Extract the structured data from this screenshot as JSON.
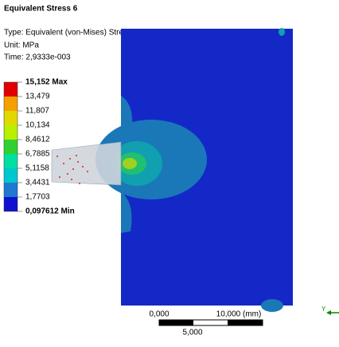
{
  "header": {
    "title": "Equivalent Stress 6",
    "type": "Type: Equivalent (von-Mises) Stress",
    "unit": "Unit: MPa",
    "time": "Time: 2,9333e-003"
  },
  "legend": {
    "labels": [
      "15,152 Max",
      "13,479",
      "11,807",
      "10,134",
      "8,4612",
      "6,7885",
      "5,1158",
      "3,4431",
      "1,7703",
      "0,097612 Min"
    ]
  },
  "scale": {
    "start": "0,000",
    "end": "10,000 (mm)",
    "mid": "5,000"
  },
  "triad": {
    "axis": "Y"
  }
}
